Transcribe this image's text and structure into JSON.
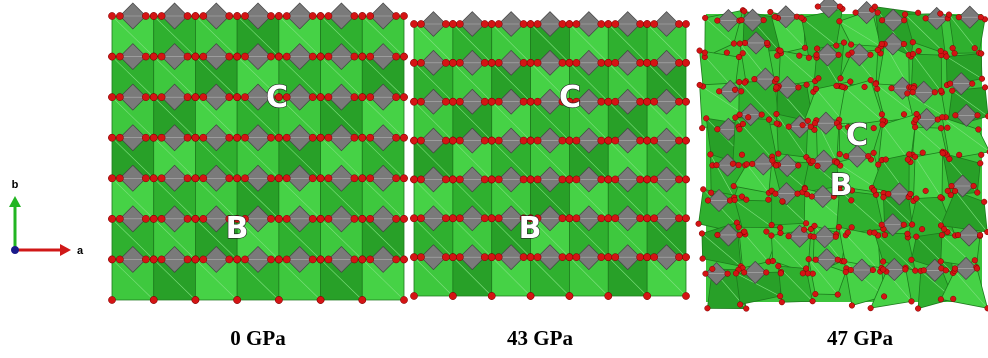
{
  "panels": [
    {
      "caption": "0 GPa",
      "labels": [
        "C",
        "B"
      ]
    },
    {
      "caption": "43 GPa",
      "labels": [
        "C",
        "B"
      ]
    },
    {
      "caption": "47 GPa",
      "labels": [
        "C",
        "B"
      ]
    }
  ],
  "axes": {
    "vertical": "b",
    "horizontal": "a"
  }
}
